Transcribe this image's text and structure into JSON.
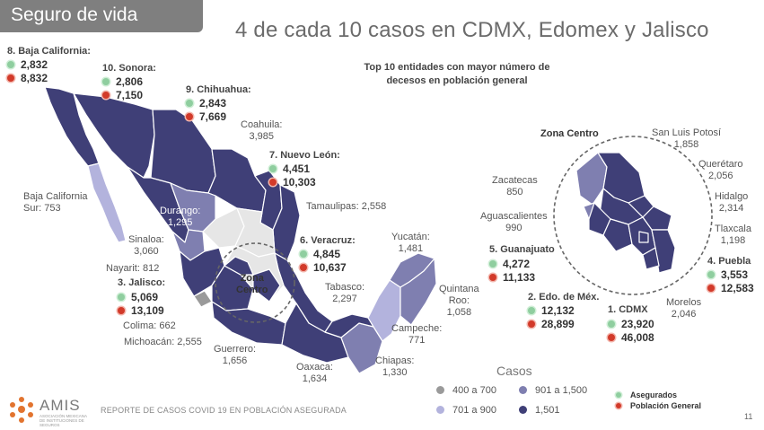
{
  "header": {
    "tab_label": "Seguro de vida",
    "title": "4 de cada 10 casos en CDMX, Edomex y Jalisco"
  },
  "subtitle": "Top 10 entidades con mayor número de decesos en población general",
  "zona_centro_label": "Zona Centro",
  "zona_centro_map_label": "Zona\nCentro",
  "top10": [
    {
      "name": "1. CDMX",
      "asegurados": "23,920",
      "poblacion": "46,008"
    },
    {
      "name": "2. Edo. de Méx.",
      "asegurados": "12,132",
      "poblacion": "28,899"
    },
    {
      "name": "3. Jalisco:",
      "asegurados": "5,069",
      "poblacion": "13,109"
    },
    {
      "name": "4. Puebla",
      "asegurados": "3,553",
      "poblacion": "12,583"
    },
    {
      "name": "5. Guanajuato",
      "asegurados": "4,272",
      "poblacion": "11,133"
    },
    {
      "name": "6. Veracruz:",
      "asegurados": "4,845",
      "poblacion": "10,637"
    },
    {
      "name": "7. Nuevo León:",
      "asegurados": "4,451",
      "poblacion": "10,303"
    },
    {
      "name": "8. Baja California:",
      "asegurados": "2,832",
      "poblacion": "8,832"
    },
    {
      "name": "9. Chihuahua:",
      "asegurados": "2,843",
      "poblacion": "7,669"
    },
    {
      "name": "10. Sonora:",
      "asegurados": "2,806",
      "poblacion": "7,150"
    }
  ],
  "states": {
    "coahuila": "Coahuila:\n3,985",
    "tamaulipas": "Tamaulipas: 2,558",
    "bcs": "Baja California\nSur: 753",
    "durango": "Durango:\n1,295",
    "sinaloa": "Sinaloa:\n3,060",
    "nayarit": "Nayarit: 812",
    "colima": "Colima: 662",
    "michoacan": "Michoacán: 2,555",
    "guerrero": "Guerrero:\n1,656",
    "oaxaca": "Oaxaca:\n1,634",
    "chiapas": "Chiapas:\n1,330",
    "campeche": "Campeche:\n771",
    "quintana_roo": "Quintana\nRoo:\n1,058",
    "tabasco": "Tabasco:\n2,297",
    "yucatan": "Yucatán:\n1,481",
    "zacatecas": "Zacatecas\n850",
    "aguascalientes": "Aguascalientes\n990",
    "slp": "San Luis Potosí\n1,858",
    "queretaro": "Querétaro\n2,056",
    "hidalgo": "Hidalgo\n2,314",
    "tlaxcala": "Tlaxcala\n1,198",
    "morelos": "Morelos\n2,046"
  },
  "legend": {
    "title": "Casos",
    "ranges": [
      {
        "label": "400 a 700",
        "color": "#9a9a9a"
      },
      {
        "label": "701 a 900",
        "color": "#b3b3dd"
      },
      {
        "label": "901 a 1,500",
        "color": "#7f7fb0"
      },
      {
        "label": "1,501",
        "color": "#3f3f77"
      }
    ],
    "markers": [
      {
        "label": "Asegurados",
        "color": "#8fce9f"
      },
      {
        "label": "Población General",
        "color": "#d23a2a"
      }
    ]
  },
  "colors": {
    "dark": "#3f3f77",
    "mid": "#7f7fb0",
    "light": "#b3b3dd",
    "gray": "#9a9a9a",
    "pale": "#e6e6e6"
  },
  "footer": {
    "org": "AMIS",
    "org_sub": "ASOCIACIÓN MEXICANA DE INSTITUCIONES DE SEGUROS",
    "report": "REPORTE DE CASOS COVID 19 EN POBLACIÓN ASEGURADA",
    "page": "11"
  }
}
